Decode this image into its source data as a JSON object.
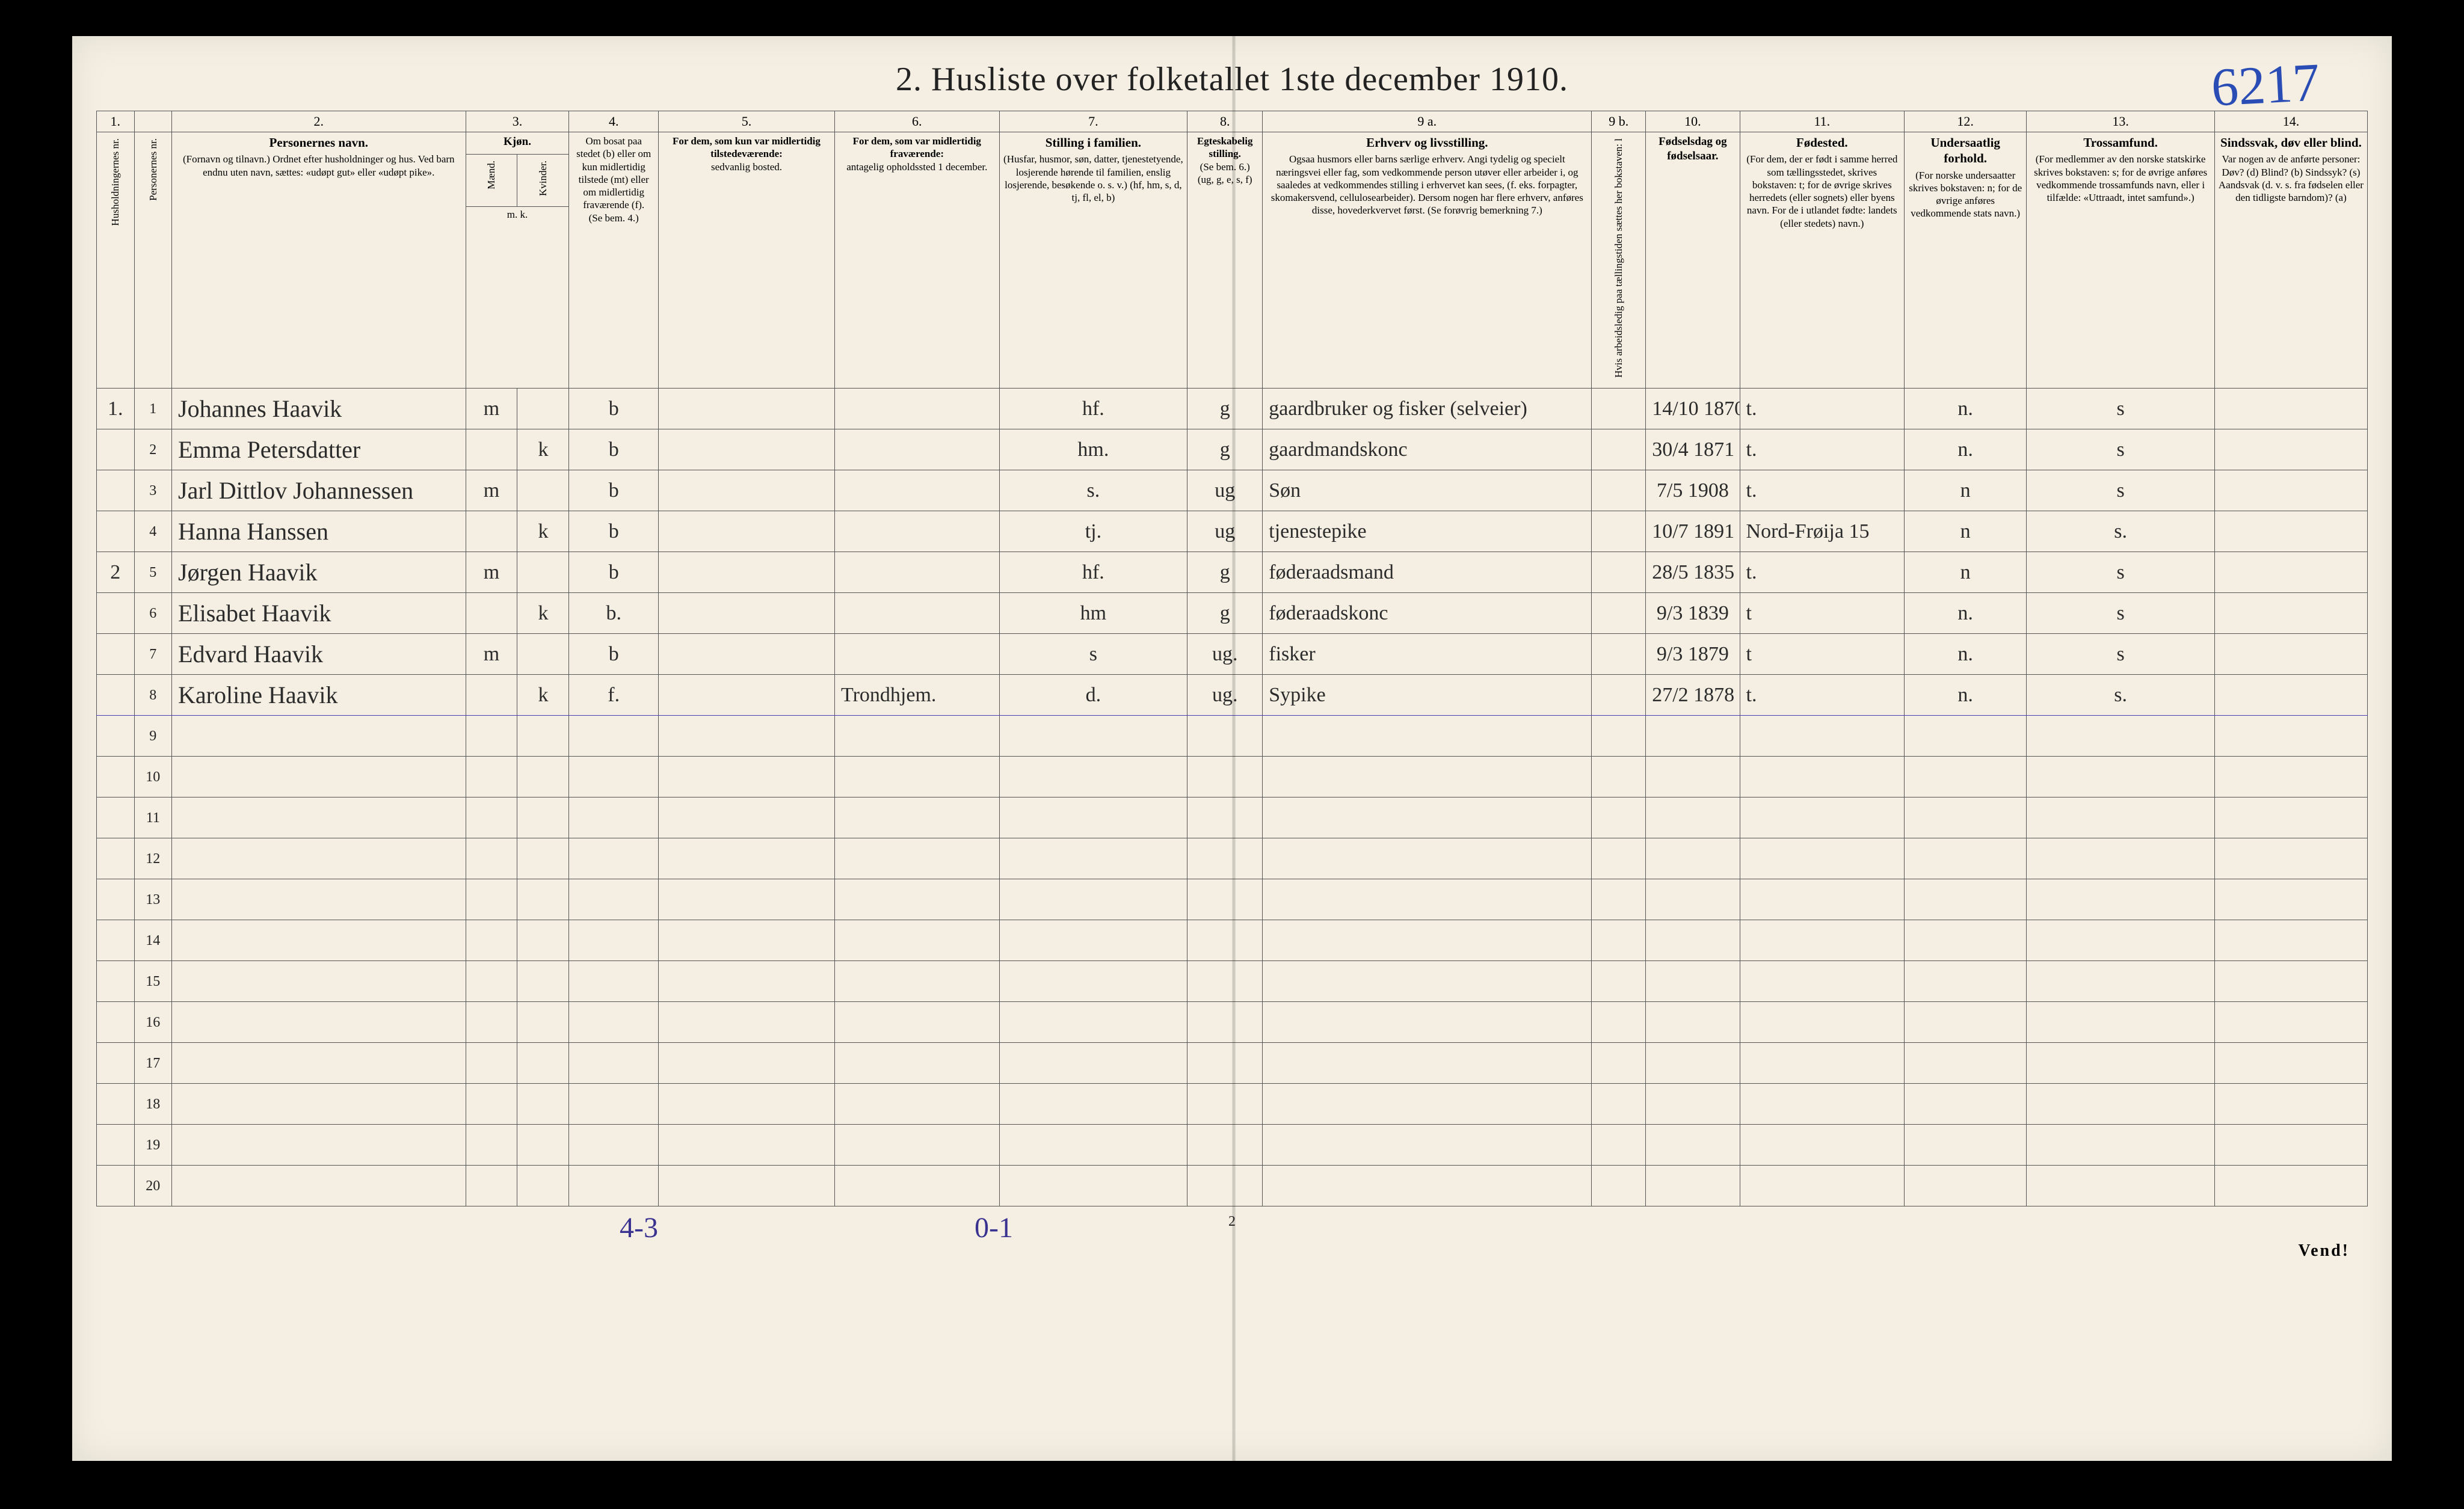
{
  "title": "2.  Husliste over folketallet 1ste december 1910.",
  "corner_number": "6217",
  "column_numbers": [
    "1.",
    "",
    "2.",
    "3.",
    "",
    "4.",
    "5.",
    "6.",
    "7.",
    "8.",
    "9 a.",
    "9 b.",
    "10.",
    "11.",
    "12.",
    "13.",
    "14."
  ],
  "headers": {
    "c1": "Husholdningernes nr.",
    "c2": "Personernes nr.",
    "c3_t": "Personernes navn.",
    "c3_s": "(Fornavn og tilnavn.)\nOrdnet efter husholdninger og hus.\nVed barn endnu uten navn, sættes: «udøpt gut» eller «udøpt pike».",
    "c4_t": "Kjøn.",
    "c4a": "Mænd.",
    "c4b": "Kvinder.",
    "c4_sub": "m.  k.",
    "c5_t": "Om bosat paa stedet (b) eller om kun midlertidig tilstede (mt) eller om midlertidig fraværende (f).",
    "c5_s": "(Se bem. 4.)",
    "c6_t": "For dem, som kun var midlertidig tilstedeværende:",
    "c6_s": "sedvanlig bosted.",
    "c7_t": "For dem, som var midlertidig fraværende:",
    "c7_s": "antagelig opholdssted 1 december.",
    "c8_t": "Stilling i familien.",
    "c8_s": "(Husfar, husmor, søn, datter, tjenestetyende, losjerende hørende til familien, enslig losjerende, besøkende o. s. v.)\n(hf, hm, s, d, tj, fl, el, b)",
    "c9_t": "Egteskabelig stilling.",
    "c9_s": "(Se bem. 6.)\n(ug, g, e, s, f)",
    "c10_t": "Erhverv og livsstilling.",
    "c10_s": "Ogsaa husmors eller barns særlige erhverv. Angi tydelig og specielt næringsvei eller fag, som vedkommende person utøver eller arbeider i, og saaledes at vedkommendes stilling i erhvervet kan sees, (f. eks. forpagter, skomakersvend, cellulosearbeider). Dersom nogen har flere erhverv, anføres disse, hovederkvervet først.\n(Se forøvrig bemerkning 7.)",
    "c10b": "Hvis arbeidsledig paa tællingstiden sættes her bokstaven: l",
    "c11_t": "Fødselsdag og fødselsaar.",
    "c12_t": "Fødested.",
    "c12_s": "(For dem, der er født i samme herred som tællingsstedet, skrives bokstaven: t; for de øvrige skrives herredets (eller sognets) eller byens navn. For de i utlandet fødte: landets (eller stedets) navn.)",
    "c13_t": "Undersaatlig forhold.",
    "c13_s": "(For norske undersaatter skrives bokstaven: n; for de øvrige anføres vedkommende stats navn.)",
    "c14_t": "Trossamfund.",
    "c14_s": "(For medlemmer av den norske statskirke skrives bokstaven: s; for de øvrige anføres vedkommende trossamfunds navn, eller i tilfælde: «Uttraadt, intet samfund».)",
    "c15_t": "Sindssvak, døv eller blind.",
    "c15_s": "Var nogen av de anførte personer:\nDøv? (d)\nBlind? (b)\nSindssyk? (s)\nAandsvak (d. v. s. fra fødselen eller den tidligste barndom)? (a)"
  },
  "rows": [
    {
      "hh": "1.",
      "pn": "1",
      "name": "Johannes Haavik",
      "m": "m",
      "k": "",
      "res": "b",
      "mt": "",
      "frv": "",
      "fam": "hf.",
      "egte": "g",
      "erhv": "gaardbruker og fisker (selveier)",
      "al": "",
      "fdato": "14/10 1870",
      "fsted": "t.",
      "und": "n.",
      "tro": "s",
      "svk": ""
    },
    {
      "hh": "",
      "pn": "2",
      "name": "Emma Petersdatter",
      "m": "",
      "k": "k",
      "res": "b",
      "mt": "",
      "frv": "",
      "fam": "hm.",
      "egte": "g",
      "erhv": "gaardmandskonc",
      "al": "",
      "fdato": "30/4 1871",
      "fsted": "t.",
      "und": "n.",
      "tro": "s",
      "svk": ""
    },
    {
      "hh": "",
      "pn": "3",
      "name": "Jarl Dittlov Johannessen",
      "m": "m",
      "k": "",
      "res": "b",
      "mt": "",
      "frv": "",
      "fam": "s.",
      "egte": "ug",
      "erhv": "Søn",
      "al": "",
      "fdato": "7/5 1908",
      "fsted": "t.",
      "und": "n",
      "tro": "s",
      "svk": ""
    },
    {
      "hh": "",
      "pn": "4",
      "name": "Hanna Hanssen",
      "m": "",
      "k": "k",
      "res": "b",
      "mt": "",
      "frv": "",
      "fam": "tj.",
      "egte": "ug",
      "erhv": "tjenestepike",
      "al": "",
      "fdato": "10/7 1891",
      "fsted": "Nord-Frøija  15",
      "und": "n",
      "tro": "s.",
      "svk": ""
    },
    {
      "hh": "2",
      "pn": "5",
      "name": "Jørgen Haavik",
      "m": "m",
      "k": "",
      "res": "b",
      "mt": "",
      "frv": "",
      "fam": "hf.",
      "egte": "g",
      "erhv": "føderaadsmand",
      "al": "",
      "fdato": "28/5 1835",
      "fsted": "t.",
      "und": "n",
      "tro": "s",
      "svk": ""
    },
    {
      "hh": "",
      "pn": "6",
      "name": "Elisabet Haavik",
      "m": "",
      "k": "k",
      "res": "b.",
      "mt": "",
      "frv": "",
      "fam": "hm",
      "egte": "g",
      "erhv": "føderaadskonc",
      "al": "",
      "fdato": "9/3 1839",
      "fsted": "t",
      "und": "n.",
      "tro": "s",
      "svk": ""
    },
    {
      "hh": "",
      "pn": "7",
      "name": "Edvard Haavik",
      "m": "m",
      "k": "",
      "res": "b",
      "mt": "",
      "frv": "",
      "fam": "s",
      "egte": "ug.",
      "erhv": "fisker",
      "al": "",
      "fdato": "9/3 1879",
      "fsted": "t",
      "und": "n.",
      "tro": "s",
      "svk": ""
    },
    {
      "hh": "",
      "pn": "8",
      "name": "Karoline Haavik",
      "m": "",
      "k": "k",
      "res": "f.",
      "mt": "",
      "frv": "Trondhjem.",
      "fam": "d.",
      "egte": "ug.",
      "erhv": "Sypike",
      "al": "",
      "fdato": "27/2 1878",
      "fsted": "t.",
      "und": "n.",
      "tro": "s.",
      "svk": ""
    }
  ],
  "blank_rows": [
    "9",
    "10",
    "11",
    "12",
    "13",
    "14",
    "15",
    "16",
    "17",
    "18",
    "19",
    "20"
  ],
  "footer": {
    "hand1": "4-3",
    "hand2": "0-1",
    "page": "2",
    "vend": "Vend!"
  }
}
